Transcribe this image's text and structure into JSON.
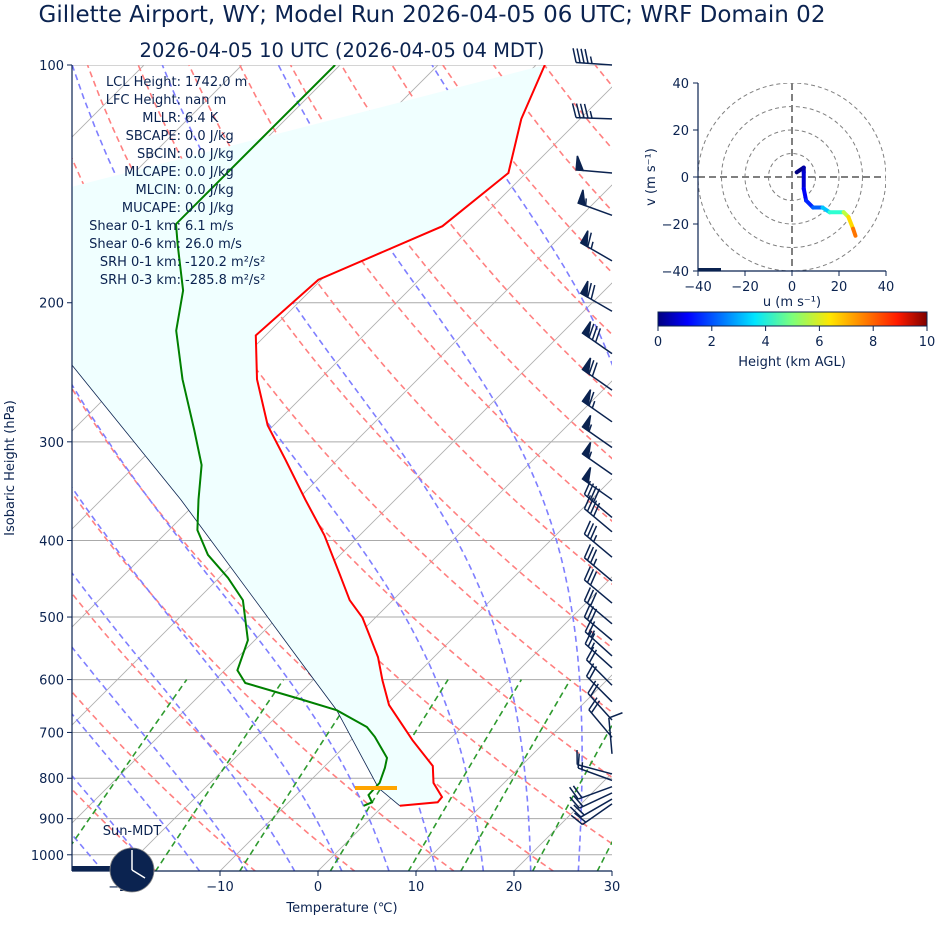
{
  "title": "Gillette  Airport, WY; Model Run 2026-04-05 06 UTC; WRF Domain 02",
  "subtitle": "2026-04-05 10 UTC  (2026-04-05 04 MDT)",
  "indices": [
    {
      "label": "LCL Height:",
      "value": "1742.0 m"
    },
    {
      "label": "LFC Height:",
      "value": "nan m"
    },
    {
      "label": "MLLR:",
      "value": "6.4 K"
    },
    {
      "label": "SBCAPE:",
      "value": "0.0 J/kg"
    },
    {
      "label": "SBCIN:",
      "value": "0.0 J/kg"
    },
    {
      "label": "MLCAPE:",
      "value": "0.0 J/kg"
    },
    {
      "label": "MLCIN:",
      "value": "0.0 J/kg"
    },
    {
      "label": "MUCAPE:",
      "value": "0.0 J/kg"
    },
    {
      "label": "Shear 0-1 km:",
      "value": "6.1 m/s"
    },
    {
      "label": "Shear 0-6 km:",
      "value": "26.0 m/s"
    },
    {
      "label": "SRH 0-1 km:",
      "value": "-120.2 m²/s²"
    },
    {
      "label": "SRH 0-3 km:",
      "value": "-285.8 m²/s²"
    }
  ],
  "clock_label": "Sun-MDT",
  "chart_data": [
    {
      "type": "skew-t",
      "xlabel": "Temperature (℃)",
      "ylabel": "Isobaric Height (hPa)",
      "xlim": [
        -25,
        30
      ],
      "ylim": [
        1050,
        100
      ],
      "y_scale": "log",
      "xticks": [
        "−20",
        "−10",
        "0",
        "10",
        "20",
        "30"
      ],
      "xtick_values": [
        -20,
        -10,
        0,
        10,
        20,
        30
      ],
      "yticks": [
        "100",
        "200",
        "300",
        "400",
        "500",
        "600",
        "700",
        "800",
        "900",
        "1000"
      ],
      "ytick_values": [
        100,
        200,
        300,
        400,
        500,
        600,
        700,
        800,
        900,
        1000
      ],
      "colors": {
        "temperature": "#ff0000",
        "dewpoint": "#008000",
        "parcel": "#0b2350",
        "lcl": "#ffa500",
        "shading": "#f0ffff",
        "dry_adiabats": "#ff8080",
        "moist_adiabats": "#7f7fff",
        "mixing_ratio": "#2e9a2e",
        "isotherms": "#b0b0b0"
      },
      "temperature": {
        "pressure": [
          867,
          858,
          845,
          811,
          772,
          716,
          646,
          601,
          562,
          535,
          501,
          476,
          442,
          394,
          355,
          316,
          286,
          250,
          220,
          187,
          160,
          137,
          117,
          100
        ],
        "temp_c": [
          1.7,
          5.2,
          5.1,
          2.8,
          1.0,
          -3.7,
          -9.7,
          -12.9,
          -15.7,
          -18.1,
          -21.3,
          -24.4,
          -28.0,
          -33.6,
          -39.2,
          -45.3,
          -50.6,
          -56.4,
          -61.0,
          -60.3,
          -53.1,
          -51.8,
          -56.0,
          -59.1
        ]
      },
      "dewpoint": {
        "pressure": [
          867,
          858,
          840,
          811,
          776,
          754,
          709,
          689,
          656,
          635,
          606,
          584,
          535,
          476,
          446,
          417,
          388,
          355,
          321,
          290,
          250,
          217,
          193,
          169,
          159,
          100
        ],
        "dewpoint_c": [
          -2.0,
          -1.5,
          -2.6,
          -2.7,
          -3.7,
          -4.5,
          -7.9,
          -9.7,
          -14.5,
          -19.4,
          -26.6,
          -28.7,
          -30.7,
          -35.3,
          -39.1,
          -43.5,
          -47.1,
          -50.1,
          -53.3,
          -57.6,
          -64.0,
          -69.6,
          -73.0,
          -78.2,
          -80.5,
          -80.5
        ]
      },
      "parcel": {
        "pressure": [
          867,
          823,
          656,
          567,
          355,
          240,
          150
        ],
        "temp_c": [
          1.7,
          -2.3,
          -14.5,
          -23.4,
          -51.9,
          -76.7,
          -100
        ]
      },
      "lcl": {
        "pressure": 823
      },
      "dry_adiabats_t0_c": [
        -30,
        -20,
        -10,
        0,
        10,
        20,
        30,
        40,
        50,
        60,
        70,
        80,
        90,
        100,
        110,
        120,
        130,
        140,
        150,
        160,
        170,
        180,
        190,
        200
      ],
      "moist_adiabats_t0_c": [
        -40,
        -35,
        -30,
        -25,
        -20,
        -15,
        -10,
        -5,
        0,
        5,
        10,
        15,
        20,
        25,
        30,
        35
      ],
      "mixing_ratios": [
        0.0004,
        0.001,
        0.002,
        0.004,
        0.007,
        0.01,
        0.016,
        0.024,
        0.032
      ],
      "wind_barbs": {
        "pressure": [
          100,
          117,
          137,
          155,
          177,
          205,
          232,
          258,
          283,
          305,
          330,
          355,
          374,
          390,
          420,
          450,
          480,
          510,
          535,
          560,
          580,
          610,
          640,
          675,
          710,
          745,
          790,
          805,
          820,
          835,
          850,
          862
        ],
        "direction_deg": [
          274,
          272,
          275,
          290,
          300,
          300,
          305,
          305,
          305,
          305,
          305,
          305,
          310,
          310,
          310,
          310,
          310,
          310,
          310,
          312,
          312,
          315,
          315,
          318,
          320,
          355,
          285,
          290,
          250,
          245,
          240,
          235
        ],
        "speed_kt": [
          45,
          45,
          50,
          55,
          65,
          70,
          80,
          70,
          65,
          55,
          55,
          50,
          40,
          40,
          35,
          35,
          30,
          30,
          30,
          25,
          25,
          20,
          20,
          20,
          20,
          10,
          10,
          15,
          20,
          20,
          20,
          20
        ]
      }
    },
    {
      "type": "hodograph",
      "xlabel": "u (m s⁻¹)",
      "ylabel": "v (m s⁻¹)",
      "xlim": [
        -40,
        40
      ],
      "ylim": [
        -40,
        40
      ],
      "ticks": [
        "−40",
        "−20",
        "0",
        "20",
        "40"
      ],
      "tick_values": [
        -40,
        -20,
        0,
        20,
        40
      ],
      "rings": [
        10,
        20,
        30,
        40
      ],
      "u": [
        2,
        5,
        5,
        5,
        6,
        9,
        13,
        16,
        22,
        24,
        26,
        27
      ],
      "v": [
        2,
        4,
        2,
        -5,
        -10,
        -13,
        -13,
        -15,
        -15,
        -17,
        -22,
        -25
      ],
      "height_km": [
        0,
        0.4,
        0.8,
        1.2,
        1.6,
        2.2,
        3.2,
        4.2,
        5.6,
        6.6,
        7.6,
        8.6
      ],
      "colorbar": {
        "label": "Height (km AGL)",
        "ticks": [
          "0",
          "2",
          "4",
          "6",
          "8",
          "10"
        ],
        "tick_values": [
          0,
          2,
          4,
          6,
          8,
          10
        ],
        "colormap": "jet"
      }
    }
  ]
}
